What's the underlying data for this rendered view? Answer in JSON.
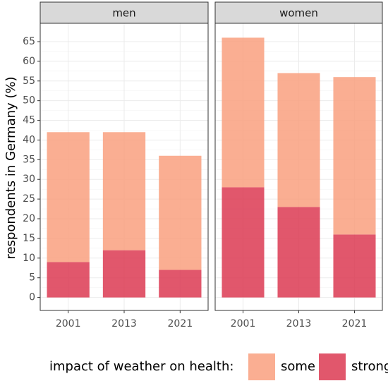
{
  "chart_data": {
    "type": "bar",
    "stacked": true,
    "ylabel": "respondents in Germany (%)",
    "legend_title": "impact of weather on health:",
    "legend_position": "bottom",
    "grid": true,
    "categories": [
      "2001",
      "2013",
      "2021"
    ],
    "ylim": [
      -3.3,
      69.3
    ],
    "yticks": [
      0,
      5,
      10,
      15,
      20,
      25,
      30,
      35,
      40,
      45,
      50,
      55,
      60,
      65
    ],
    "series": [
      {
        "name": "strong",
        "color": "#dc3a52"
      },
      {
        "name": "some",
        "color": "#f9a07f"
      }
    ],
    "legend_order": [
      1,
      0
    ],
    "facets": [
      {
        "title": "men",
        "series_values": [
          [
            9,
            12,
            7
          ],
          [
            33,
            30,
            29
          ]
        ]
      },
      {
        "title": "women",
        "series_values": [
          [
            28,
            23,
            16
          ],
          [
            38,
            34,
            40
          ]
        ]
      }
    ]
  }
}
